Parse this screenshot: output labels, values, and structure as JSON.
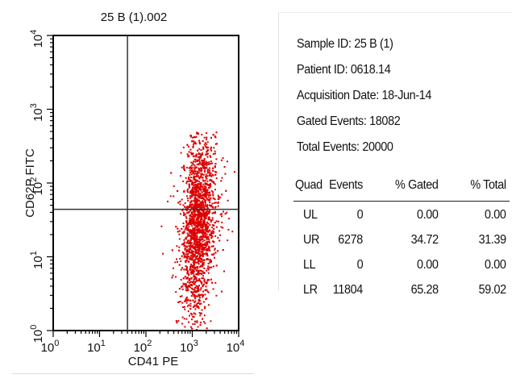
{
  "chart_data": {
    "type": "scatter",
    "title": "25 B (1).002",
    "xlabel": "CD41 PE",
    "ylabel": "CD62P FITC",
    "xscale": "log",
    "yscale": "log",
    "xlim": [
      1,
      10000
    ],
    "ylim": [
      1,
      10000
    ],
    "x_ticks": [
      {
        "base": "10",
        "exp": "0"
      },
      {
        "base": "10",
        "exp": "1"
      },
      {
        "base": "10",
        "exp": "2"
      },
      {
        "base": "10",
        "exp": "3"
      },
      {
        "base": "10",
        "exp": "4"
      }
    ],
    "y_ticks": [
      {
        "base": "10",
        "exp": "0"
      },
      {
        "base": "10",
        "exp": "1"
      },
      {
        "base": "10",
        "exp": "2"
      },
      {
        "base": "10",
        "exp": "3"
      },
      {
        "base": "10",
        "exp": "4"
      }
    ],
    "quadrant_gate": {
      "x": 40,
      "y": 44
    },
    "point_color": "#dd0000",
    "population": {
      "center_x": 1300,
      "center_y": 30,
      "x_range": [
        150,
        8000
      ],
      "y_range": [
        1,
        500
      ]
    }
  },
  "info": {
    "sample_id": "Sample ID: 25 B (1)",
    "patient_id": "Patient ID: 0618.14",
    "acquisition_date": "Acquisition Date: 18-Jun-14",
    "gated_events": "Gated Events: 18082",
    "total_events": "Total Events: 20000"
  },
  "quadrant_table": {
    "headers": [
      "Quad",
      "Events",
      "% Gated",
      "% Total"
    ],
    "rows": [
      [
        "UL",
        "0",
        "0.00",
        "0.00"
      ],
      [
        "UR",
        "6278",
        "34.72",
        "31.39"
      ],
      [
        "LL",
        "0",
        "0.00",
        "0.00"
      ],
      [
        "LR",
        "11804",
        "65.28",
        "59.02"
      ]
    ]
  }
}
